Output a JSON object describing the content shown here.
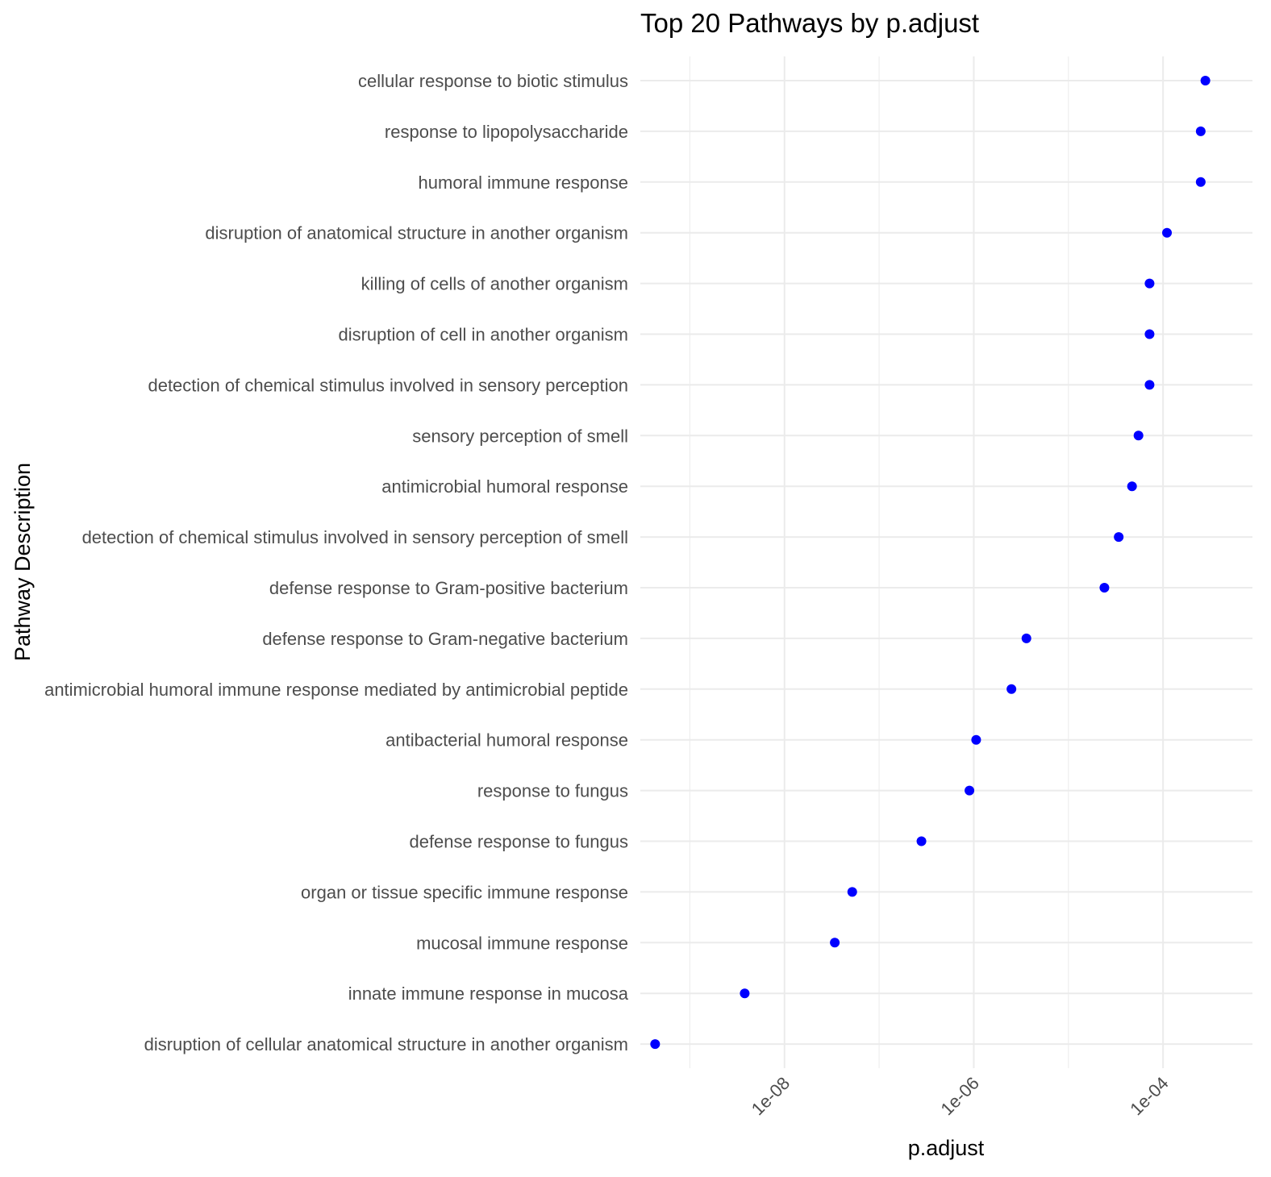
{
  "chart_data": {
    "type": "scatter",
    "title": "Top 20 Pathways by p.adjust",
    "xlabel": "p.adjust",
    "ylabel": "Pathway Description",
    "x_scale": "log10",
    "xlim": [
      3e-10,
      0.00088
    ],
    "x_ticks": [
      {
        "value": 1e-08,
        "label": "1e-08"
      },
      {
        "value": 1e-06,
        "label": "1e-06"
      },
      {
        "value": 0.0001,
        "label": "1e-04"
      }
    ],
    "x_minor_ticks": [
      1e-09,
      1e-07,
      1e-05
    ],
    "grid": true,
    "legend": "none",
    "point_color": "#0000ff",
    "points": [
      {
        "label": "cellular response to biotic stimulus",
        "x": 0.00028
      },
      {
        "label": "response to lipopolysaccharide",
        "x": 0.00025
      },
      {
        "label": "humoral immune response",
        "x": 0.00025
      },
      {
        "label": "disruption of anatomical structure in another organism",
        "x": 0.00011
      },
      {
        "label": "killing of cells of another organism",
        "x": 7.2e-05
      },
      {
        "label": "disruption of cell in another organism",
        "x": 7.2e-05
      },
      {
        "label": "detection of chemical stimulus involved in sensory perception",
        "x": 7.2e-05
      },
      {
        "label": "sensory perception of smell",
        "x": 5.5e-05
      },
      {
        "label": "antimicrobial humoral response",
        "x": 4.7e-05
      },
      {
        "label": "detection of chemical stimulus involved in sensory perception of smell",
        "x": 3.4e-05
      },
      {
        "label": "defense response to Gram-positive bacterium",
        "x": 2.4e-05
      },
      {
        "label": "defense response to Gram-negative bacterium",
        "x": 3.6e-06
      },
      {
        "label": "antimicrobial humoral immune response mediated by antimicrobial peptide",
        "x": 2.5e-06
      },
      {
        "label": "antibacterial humoral response",
        "x": 1.06e-06
      },
      {
        "label": "response to fungus",
        "x": 9e-07
      },
      {
        "label": "defense response to fungus",
        "x": 2.8e-07
      },
      {
        "label": "organ or tissue specific immune response",
        "x": 5.2e-08
      },
      {
        "label": "mucosal immune response",
        "x": 3.4e-08
      },
      {
        "label": "innate immune response in mucosa",
        "x": 3.8e-09
      },
      {
        "label": "disruption of cellular anatomical structure in another organism",
        "x": 4.3e-10
      }
    ]
  }
}
